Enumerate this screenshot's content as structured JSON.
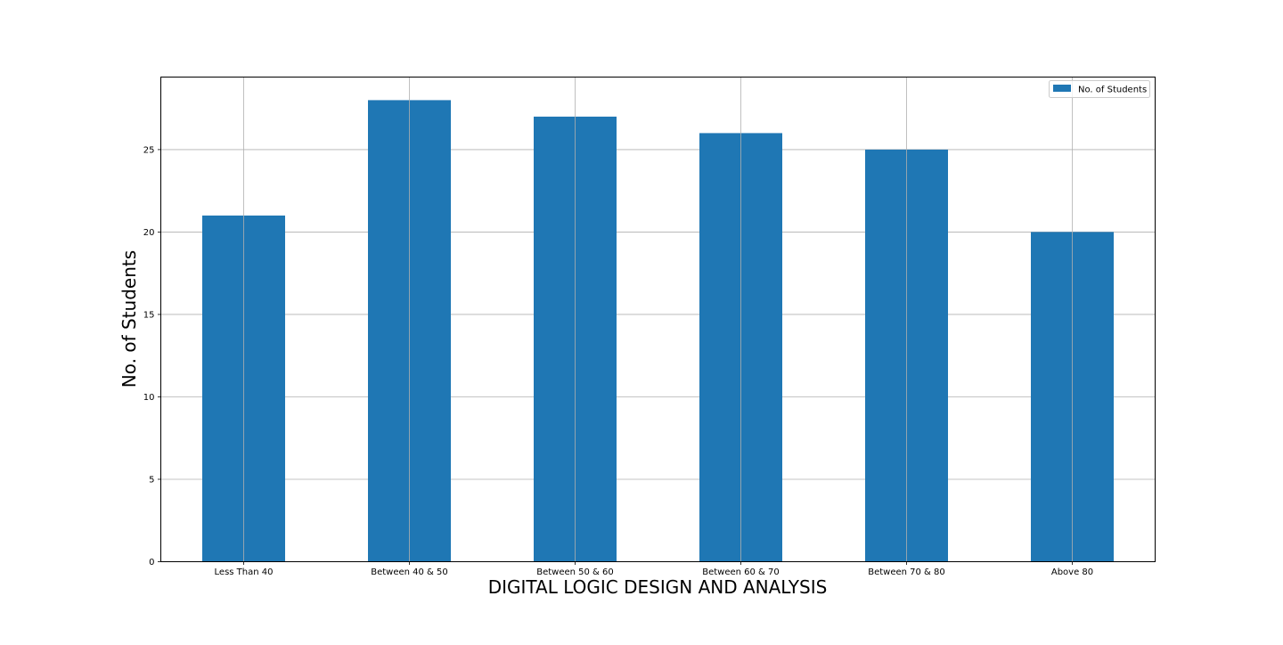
{
  "chart_data": {
    "type": "bar",
    "categories": [
      "Less Than 40",
      "Between 40 & 50",
      "Between 50 & 60",
      "Between 60 & 70",
      "Between 70 & 80",
      "Above 80"
    ],
    "series": [
      {
        "name": "No. of Students",
        "values": [
          21,
          28,
          27,
          26,
          25,
          20
        ],
        "color": "#1f77b4"
      }
    ],
    "title": "",
    "xlabel": "DIGITAL LOGIC DESIGN AND ANALYSIS",
    "ylabel": "No. of Students",
    "ylim": [
      0,
      29.4
    ],
    "yticks": [
      0,
      5,
      10,
      15,
      20,
      25
    ],
    "grid": true,
    "grid_color": "#b0b0b0",
    "legend": {
      "placement": "top-right",
      "label": "No. of Students"
    }
  }
}
